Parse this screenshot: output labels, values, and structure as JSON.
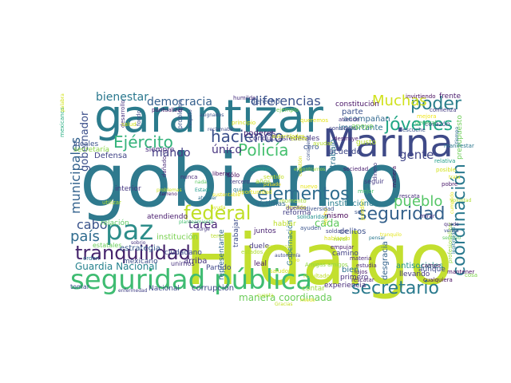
{
  "words": [
    {
      "text": "gobierno",
      "color": "#2f7a8e"
    },
    {
      "text": "Hidalgo",
      "color": "#c3df2f"
    },
    {
      "text": "garantizar",
      "color": "#2b7b8c"
    },
    {
      "text": "Marina",
      "color": "#3f4a88"
    },
    {
      "text": "seguridad pública",
      "color": "#3fbc72"
    },
    {
      "text": "paz",
      "color": "#2d8d8a"
    },
    {
      "text": "federal",
      "color": "#c0df27"
    },
    {
      "text": "tranquilidad",
      "color": "#45246c"
    },
    {
      "text": "elementos",
      "color": "#2f6c8e"
    },
    {
      "text": "seguridad",
      "color": "#34618c"
    },
    {
      "text": "secretario",
      "color": "#2a7a8d"
    },
    {
      "text": "jóvenes",
      "color": "#22a785"
    },
    {
      "text": "poder",
      "color": "#2b7f8c"
    },
    {
      "text": "Policía",
      "color": "#46c06f"
    },
    {
      "text": "Ejército",
      "color": "#34b37b"
    },
    {
      "text": "haciendo",
      "color": "#3b4f8a"
    },
    {
      "text": "coordinación",
      "color": "#2a798e"
    },
    {
      "text": "diferencias",
      "color": "#3b528b"
    },
    {
      "text": "Muchas",
      "color": "#d0e11c"
    },
    {
      "text": "democracia",
      "color": "#35608d"
    },
    {
      "text": "bienestar",
      "color": "#2a788e"
    },
    {
      "text": "municipales",
      "color": "#33628d"
    },
    {
      "text": "gobernador",
      "color": "#3c4f8a"
    },
    {
      "text": "país",
      "color": "#2f6b8e"
    },
    {
      "text": "pueblo",
      "color": "#56c667"
    },
    {
      "text": "tarea",
      "color": "#482475"
    },
    {
      "text": "cabo",
      "color": "#3a538b"
    },
    {
      "text": "mando",
      "color": "#433e85"
    },
    {
      "text": "único",
      "color": "#46337f"
    },
    {
      "text": "gente",
      "color": "#404588"
    },
    {
      "text": "cada",
      "color": "#60ca60"
    },
    {
      "text": "Guardia Nacional",
      "color": "#26828e"
    },
    {
      "text": "manera coordinada",
      "color": "#6ccd5a"
    },
    {
      "text": "Defensa",
      "color": "#414487"
    },
    {
      "text": "relación",
      "color": "#5ec962"
    },
    {
      "text": "estrategia",
      "color": "#38598c"
    },
    {
      "text": "institución",
      "color": "#7ad151"
    },
    {
      "text": "ciudadano",
      "color": "#3e4c8a"
    },
    {
      "text": "atendiendo",
      "color": "#481b6d"
    },
    {
      "text": "mexicano",
      "color": "#3d4e8a"
    },
    {
      "text": "arriba",
      "color": "#46327e"
    },
    {
      "text": "Nacional",
      "color": "#3e4989"
    },
    {
      "text": "corrupción",
      "color": "#3f4788"
    },
    {
      "text": "instituciones",
      "color": "#287d8e"
    },
    {
      "text": "víctimas",
      "color": "#306a8e"
    },
    {
      "text": "juntos",
      "color": "#481f70"
    },
    {
      "text": "representante",
      "color": "#31688e"
    },
    {
      "text": "trabajar",
      "color": "#3d4d8a"
    },
    {
      "text": "Gobernación",
      "color": "#2b748e"
    },
    {
      "text": "delitos",
      "color": "#3c508b"
    },
    {
      "text": "camino",
      "color": "#424086"
    },
    {
      "text": "desgracia",
      "color": "#33638d"
    },
    {
      "text": "antisociales",
      "color": "#1f948c"
    },
    {
      "text": "llevando",
      "color": "#453882"
    },
    {
      "text": "aunque",
      "color": "#3e4989"
    },
    {
      "text": "bien",
      "color": "#2c718e"
    },
    {
      "text": "primero",
      "color": "#472f7d"
    },
    {
      "text": "experiencia",
      "color": "#472c7a"
    },
    {
      "text": "poderes",
      "color": "#482173"
    },
    {
      "text": "Partido",
      "color": "#3f4889"
    },
    {
      "text": "derecho",
      "color": "#3a548c"
    },
    {
      "text": "constitución",
      "color": "#471365"
    },
    {
      "text": "parte",
      "color": "#3b518b"
    },
    {
      "text": "importante",
      "color": "#2c728e"
    },
    {
      "text": "acuerdo",
      "color": "#3f4788"
    },
    {
      "text": "trabajo",
      "color": "#2c738e"
    },
    {
      "text": "frente",
      "color": "#481a6c"
    },
    {
      "text": "siempre",
      "color": "#472a7a"
    },
    {
      "text": "locales",
      "color": "#3b518b"
    },
    {
      "text": "secretaría",
      "color": "#8bd646"
    },
    {
      "text": "mismo",
      "color": "#440154"
    },
    {
      "text": "reforma",
      "color": "#423f85"
    },
    {
      "text": "hablar",
      "color": "#bddf26"
    },
    {
      "text": "contar",
      "color": "#9bd93c"
    },
    {
      "text": "leal",
      "color": "#481467"
    },
    {
      "text": "duele",
      "color": "#453781"
    },
    {
      "text": "unirnos",
      "color": "#46307e"
    },
    {
      "text": "interior",
      "color": "#453781"
    },
    {
      "text": "años",
      "color": "#a8db34"
    },
    {
      "text": "gusto",
      "color": "#b5de2b"
    },
    {
      "text": "conductasfederales",
      "color": "#463480"
    },
    {
      "text": "cero",
      "color": "#3a548c"
    },
    {
      "text": "sólo",
      "color": "#450559"
    },
    {
      "text": "tercero",
      "color": "#443983"
    },
    {
      "text": "problema",
      "color": "#3a548c"
    },
    {
      "text": "puntualizar",
      "color": "#48186a"
    },
    {
      "text": "acompañan",
      "color": "#31688e"
    },
    {
      "text": "apoyo",
      "color": "#73d056"
    },
    {
      "text": "invirtiendo",
      "color": "#460a5d"
    },
    {
      "text": "comienza",
      "color": "#443b84"
    },
    {
      "text": "corazón",
      "color": "#3e4a89"
    },
    {
      "text": "presupuesto",
      "color": "#6ece58"
    },
    {
      "text": "general",
      "color": "#48c16e"
    },
    {
      "text": "escuche",
      "color": "#3a548c"
    },
    {
      "text": "manera",
      "color": "#46075a"
    },
    {
      "text": "pobre",
      "color": "#481769"
    },
    {
      "text": "rescata",
      "color": "#472c7a"
    },
    {
      "text": "seguir",
      "color": "#443a83"
    },
    {
      "text": "dinero",
      "color": "#453882"
    },
    {
      "text": "sociedad",
      "color": "#481c6e"
    },
    {
      "text": "liberar",
      "color": "#46085c"
    },
    {
      "text": "nunca",
      "color": "#482979"
    },
    {
      "text": "dañado",
      "color": "#4a2d7a"
    },
    {
      "text": "fondo",
      "color": "#3e4989"
    },
    {
      "text": "desarrollo",
      "color": "#46307e"
    },
    {
      "text": "mexicanos",
      "color": "#27ad81"
    },
    {
      "text": "utilizar",
      "color": "#b2dd2d"
    },
    {
      "text": "estatales",
      "color": "#6ccd5a"
    },
    {
      "text": "enfermedad",
      "color": "#424086"
    },
    {
      "text": "tomar",
      "color": "#3b528b"
    },
    {
      "text": "orden",
      "color": "#2c718e"
    },
    {
      "text": "sobrio",
      "color": "#46337f"
    },
    {
      "text": "surge",
      "color": "#453781"
    },
    {
      "text": "materia",
      "color": "#482677"
    },
    {
      "text": "estudia",
      "color": "#482878"
    },
    {
      "text": "lujos",
      "color": "#481a6c"
    },
    {
      "text": "rescatar",
      "color": "#481f70"
    },
    {
      "text": "mantener",
      "color": "#460b5e"
    },
    {
      "text": "cualquiera",
      "color": "#46085c"
    },
    {
      "text": "profesionalizar",
      "color": "#98d83e"
    },
    {
      "text": "cosa",
      "color": "#7fd34e"
    },
    {
      "text": "campo",
      "color": "#460a5d"
    },
    {
      "text": "mirar",
      "color": "#472d7b"
    },
    {
      "text": "empujar",
      "color": "#48186a"
    },
    {
      "text": "ayuden",
      "color": "#3a548c"
    },
    {
      "text": "salud",
      "color": "#d2e21b"
    },
    {
      "text": "principio",
      "color": "#d8e219"
    },
    {
      "text": "atiende",
      "color": "#453882"
    },
    {
      "text": "considero",
      "color": "#414487"
    },
    {
      "text": "humilde",
      "color": "#472f7d"
    },
    {
      "text": "destruye",
      "color": "#481a6c"
    },
    {
      "text": "palabra",
      "color": "#d2e21b"
    },
    {
      "text": "respeto",
      "color": "#3e4989"
    },
    {
      "text": "planteamiento",
      "color": "#44bf70"
    },
    {
      "text": "tiempo",
      "color": "#2e6e8e"
    },
    {
      "text": "servicio",
      "color": "#5ec962"
    },
    {
      "text": "queremos",
      "color": "#e5e419"
    },
    {
      "text": "sentido",
      "color": "#c2df23"
    },
    {
      "text": "pasado",
      "color": "#fde725"
    },
    {
      "text": "tener",
      "color": "#b8de29"
    },
    {
      "text": "llevado",
      "color": "#cde11d"
    },
    {
      "text": "hecho",
      "color": "#f1e51d"
    },
    {
      "text": "cambio",
      "color": "#1fa188"
    },
    {
      "text": "quiere",
      "color": "#2a788e"
    },
    {
      "text": "estados",
      "color": "#addc30"
    },
    {
      "text": "momento",
      "color": "#a5db36"
    },
    {
      "text": "dueños",
      "color": "#472e7c"
    },
    {
      "text": "solidaridad",
      "color": "#21908d"
    },
    {
      "text": "diversidad",
      "color": "#3b528b"
    },
    {
      "text": "Amigas amigos",
      "color": "#90d743"
    },
    {
      "text": "saludos",
      "color": "#d5e21a"
    },
    {
      "text": "resultado",
      "color": "#bfdf25"
    },
    {
      "text": "soldado",
      "color": "#414487"
    },
    {
      "text": "hablando",
      "color": "#dde318"
    },
    {
      "text": "nivel",
      "color": "#9fda3a"
    },
    {
      "text": "autoridades",
      "color": "#d0e11c"
    },
    {
      "text": "oportunidad",
      "color": "#e2e418"
    },
    {
      "text": "nuevo",
      "color": "#e7e419"
    },
    {
      "text": "mejor",
      "color": "#4ac16d"
    },
    {
      "text": "ayudar",
      "color": "#b5de2b"
    },
    {
      "text": "existe",
      "color": "#c8e020"
    },
    {
      "text": "sol",
      "color": "#3b528b"
    },
    {
      "text": "pueden",
      "color": "#e4e419"
    },
    {
      "text": "ejemplo",
      "color": "#77d153"
    },
    {
      "text": "mejora",
      "color": "#efe51c"
    },
    {
      "text": "relativa",
      "color": "#1f9e89"
    },
    {
      "text": "posible",
      "color": "#d2e21b"
    },
    {
      "text": "terreno",
      "color": "#48186a"
    },
    {
      "text": "manifestar",
      "color": "#2a768e"
    },
    {
      "text": "quede",
      "color": "#472c7a"
    },
    {
      "text": "venga",
      "color": "#3b528b"
    },
    {
      "text": "cumplido",
      "color": "#e2e418"
    },
    {
      "text": "legitimidad",
      "color": "#2a788e"
    },
    {
      "text": "cuestión",
      "color": "#d8e219"
    },
    {
      "text": "considerar",
      "color": "#3b528b"
    },
    {
      "text": "atender",
      "color": "#2d708e"
    },
    {
      "text": "ayuda",
      "color": "#d0e11c"
    },
    {
      "text": "sustentable",
      "color": "#e7e419"
    },
    {
      "text": "asignados",
      "color": "#3b528b"
    },
    {
      "text": "reclamaba",
      "color": "#3e4a89"
    },
    {
      "text": "problemas",
      "color": "#c8e020"
    },
    {
      "text": "nada",
      "color": "#5ec962"
    },
    {
      "text": "esperanza",
      "color": "#c2df23"
    },
    {
      "text": "autonomía",
      "color": "#3e4989"
    },
    {
      "text": "trata",
      "color": "#d8e219"
    },
    {
      "text": "encontramos",
      "color": "#9bd93c"
    },
    {
      "text": "Estado",
      "color": "#1f9a8a"
    },
    {
      "text": "pensar",
      "color": "#2a788e"
    },
    {
      "text": "tranquilo",
      "color": "#e2e418"
    },
    {
      "text": "voluntad",
      "color": "#addc30"
    },
    {
      "text": "creo",
      "color": "#d2e21b"
    },
    {
      "text": "miedo",
      "color": "#e5e419"
    },
    {
      "text": "cuenta",
      "color": "#b5de2b"
    },
    {
      "text": "Gracias",
      "color": "#c2df23"
    },
    {
      "text": "Ley",
      "color": "#d8e219"
    },
    {
      "text": "tenemos",
      "color": "#dde318"
    },
    {
      "text": "va",
      "color": "#cde11d"
    },
    {
      "text": "estar",
      "color": "#c8e020"
    },
    {
      "text": "quiero",
      "color": "#f1e51d"
    }
  ]
}
